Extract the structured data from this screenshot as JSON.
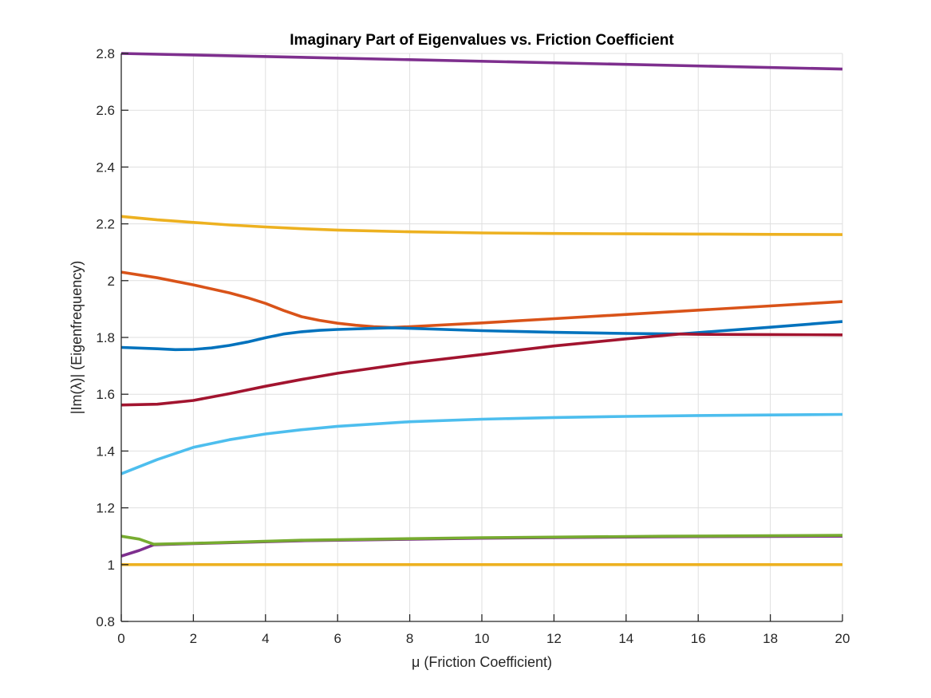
{
  "chart_data": {
    "type": "line",
    "title": "Imaginary Part of Eigenvalues vs. Friction Coefficient",
    "xlabel": "μ (Friction Coefficient)",
    "ylabel": "|Im(λ)| (Eigenfrequency)",
    "xlim": [
      0,
      20
    ],
    "ylim": [
      0.8,
      2.8
    ],
    "grid": true,
    "xticks": [
      0,
      2,
      4,
      6,
      8,
      10,
      12,
      14,
      16,
      18,
      20
    ],
    "xtick_labels": [
      "0",
      "2",
      "4",
      "6",
      "8",
      "10",
      "12",
      "14",
      "16",
      "18",
      "20"
    ],
    "yticks": [
      0.8,
      1.0,
      1.2,
      1.4,
      1.6,
      1.8,
      2.0,
      2.2,
      2.4,
      2.6,
      2.8
    ],
    "ytick_labels": [
      "0.8",
      "1",
      "1.2",
      "1.4",
      "1.6",
      "1.8",
      "2",
      "2.2",
      "2.4",
      "2.6",
      "2.8"
    ],
    "series": [
      {
        "name": "mode-1",
        "color": "#7E2F8E",
        "x": [
          0,
          20
        ],
        "y": [
          2.8,
          2.745
        ]
      },
      {
        "name": "mode-2",
        "color": "#EDB120",
        "x": [
          0,
          1,
          2,
          3,
          4,
          5,
          6,
          8,
          10,
          12,
          14,
          16,
          18,
          20
        ],
        "y": [
          2.226,
          2.214,
          2.205,
          2.196,
          2.189,
          2.183,
          2.178,
          2.172,
          2.168,
          2.166,
          2.165,
          2.164,
          2.163,
          2.162
        ]
      },
      {
        "name": "mode-3",
        "color": "#D95319",
        "x": [
          0,
          1,
          2,
          3,
          3.5,
          4,
          4.5,
          5,
          5.5,
          6,
          6.5,
          7,
          7.5,
          8,
          10,
          12,
          14,
          16,
          18,
          20
        ],
        "y": [
          2.03,
          2.01,
          1.985,
          1.957,
          1.94,
          1.92,
          1.895,
          1.873,
          1.86,
          1.85,
          1.843,
          1.838,
          1.835,
          1.838,
          1.851,
          1.866,
          1.881,
          1.896,
          1.911,
          1.926
        ]
      },
      {
        "name": "mode-4",
        "color": "#0072BD",
        "x": [
          0,
          1,
          1.5,
          2,
          2.5,
          3,
          3.5,
          4,
          4.5,
          5,
          5.5,
          6,
          7,
          7.5,
          8,
          10,
          12,
          14,
          15.5,
          16,
          18,
          20
        ],
        "y": [
          1.765,
          1.76,
          1.757,
          1.758,
          1.763,
          1.772,
          1.784,
          1.799,
          1.812,
          1.82,
          1.825,
          1.828,
          1.832,
          1.834,
          1.832,
          1.824,
          1.818,
          1.814,
          1.812,
          1.817,
          1.836,
          1.856
        ]
      },
      {
        "name": "mode-5",
        "color": "#A2142F",
        "x": [
          0,
          1,
          2,
          3,
          4,
          5,
          6,
          8,
          10,
          12,
          14,
          15.5,
          16,
          18,
          20
        ],
        "y": [
          1.562,
          1.565,
          1.578,
          1.602,
          1.628,
          1.652,
          1.674,
          1.71,
          1.74,
          1.77,
          1.795,
          1.812,
          1.811,
          1.81,
          1.809
        ]
      },
      {
        "name": "mode-6",
        "color": "#4DBEEE",
        "x": [
          0,
          1,
          2,
          3,
          4,
          5,
          6,
          8,
          10,
          12,
          14,
          16,
          18,
          20
        ],
        "y": [
          1.32,
          1.37,
          1.413,
          1.44,
          1.46,
          1.475,
          1.487,
          1.503,
          1.512,
          1.518,
          1.522,
          1.525,
          1.527,
          1.529
        ]
      },
      {
        "name": "mode-7",
        "color": "#7E2F8E",
        "x": [
          0,
          0.5,
          0.9,
          2,
          5,
          10,
          15,
          20
        ],
        "y": [
          1.03,
          1.05,
          1.07,
          1.074,
          1.084,
          1.093,
          1.098,
          1.1
        ]
      },
      {
        "name": "mode-8",
        "color": "#77AC30",
        "x": [
          0,
          0.5,
          0.9,
          2,
          5,
          10,
          15,
          20
        ],
        "y": [
          1.1,
          1.09,
          1.072,
          1.075,
          1.086,
          1.095,
          1.1,
          1.103
        ]
      },
      {
        "name": "mode-9",
        "color": "#EDB120",
        "x": [
          0,
          20
        ],
        "y": [
          1.0,
          1.0
        ]
      }
    ]
  }
}
